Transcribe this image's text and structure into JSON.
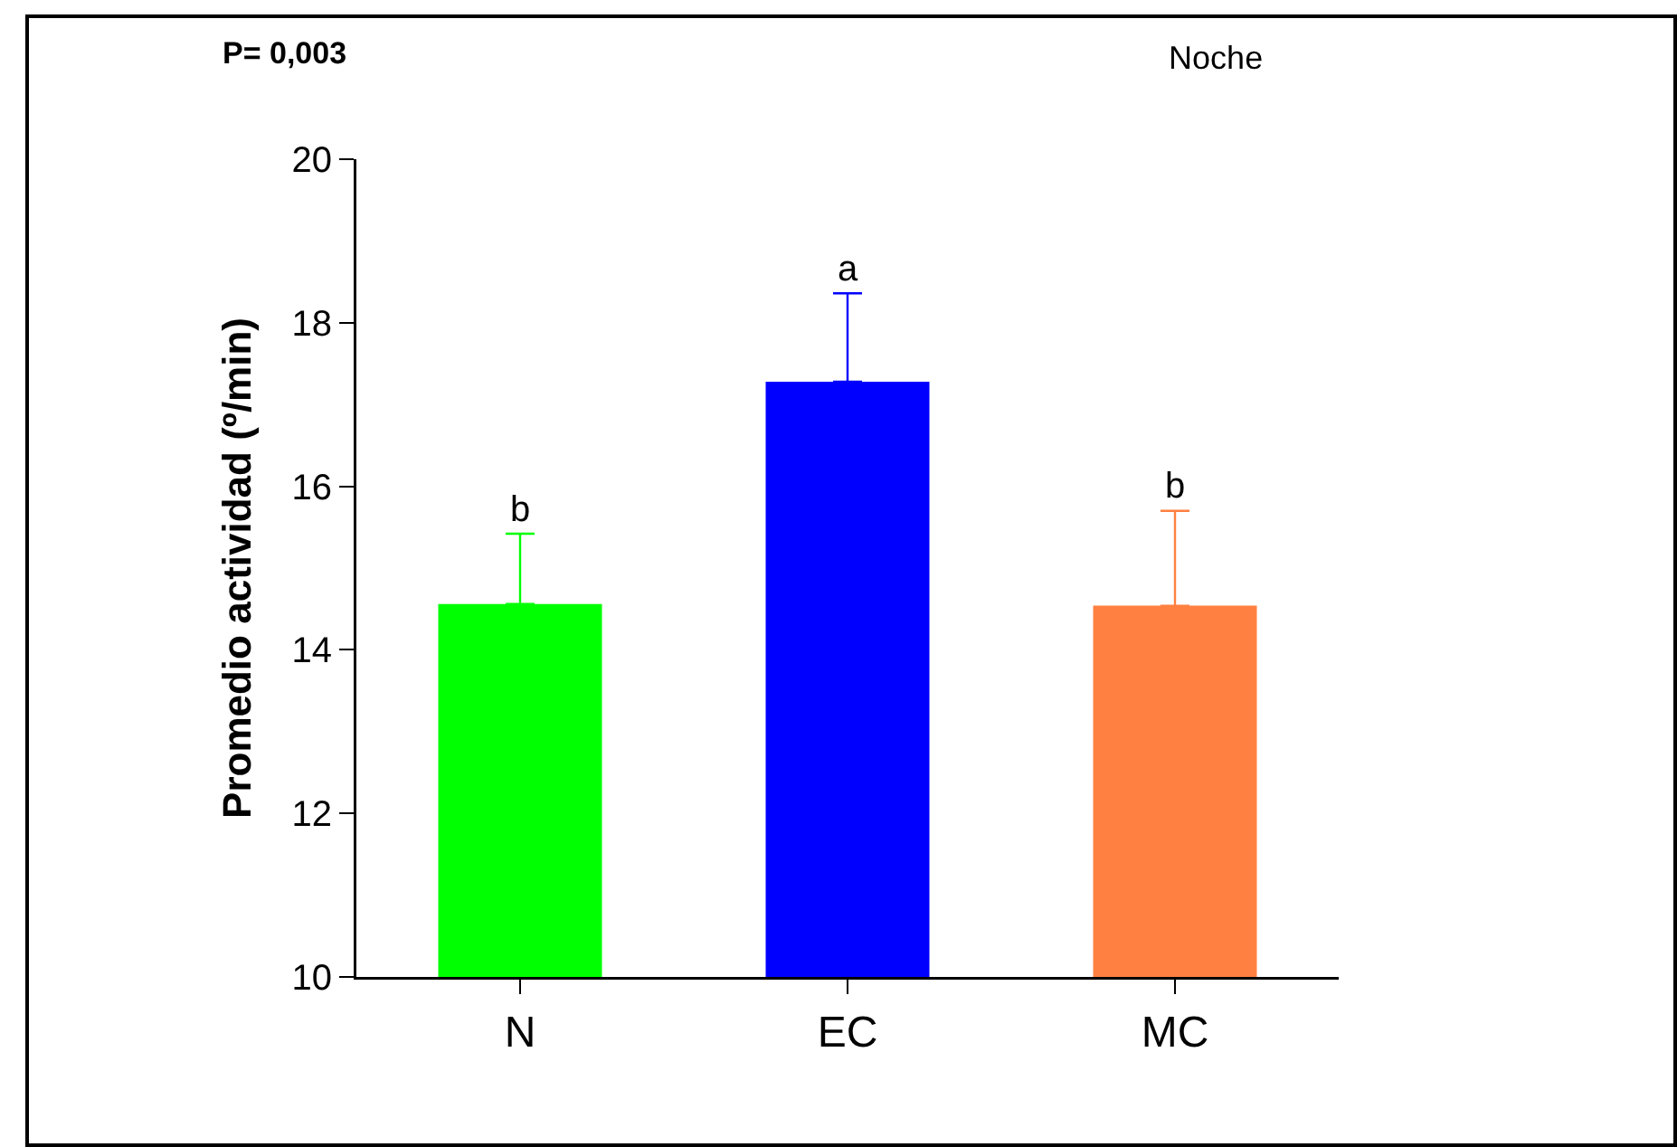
{
  "chart_data": {
    "type": "bar",
    "title": "Noche",
    "ylabel": "Promedio actividad (º/min)",
    "categories": [
      "N",
      "EC",
      "MC"
    ],
    "values": [
      14.56,
      17.28,
      14.54
    ],
    "colors": [
      "#00ff00",
      "#0000ff",
      "#ff8040"
    ],
    "errors": [
      [
        14.56,
        15.42
      ],
      [
        17.28,
        18.36
      ],
      [
        14.54,
        15.7
      ]
    ],
    "ylim": [
      10,
      20
    ],
    "yticks": [
      10,
      12,
      14,
      16,
      18,
      20
    ],
    "grid": false,
    "annotations": [
      "P= 0,003",
      {
        "text": "b",
        "x": "N",
        "y": 15.42
      },
      {
        "text": "a",
        "x": "EC",
        "y": 18.36
      },
      {
        "text": "b",
        "x": "MC",
        "y": 15.7
      }
    ]
  }
}
